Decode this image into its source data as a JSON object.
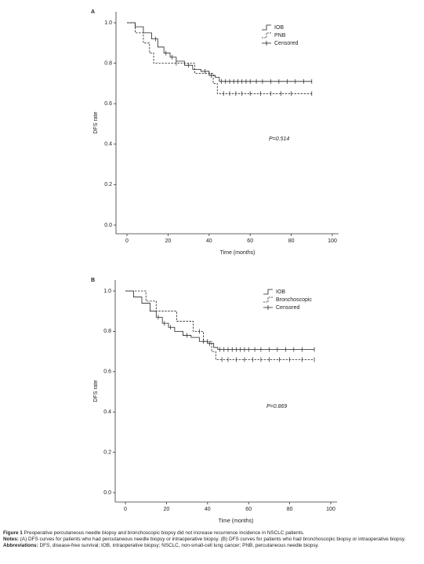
{
  "chart_data": [
    {
      "type": "step",
      "panel": "A",
      "xlabel": "Time (months)",
      "ylabel": "DFS rate",
      "annotation": "P=0.514",
      "xlim": [
        0,
        100
      ],
      "xticks": [
        0,
        20,
        40,
        60,
        80,
        100
      ],
      "ylim": [
        0,
        1
      ],
      "yticks": [
        {
          "value": 0,
          "label": "0.0"
        },
        0.2,
        0.4,
        0.6,
        0.8,
        {
          "value": 1,
          "label": "1.0"
        }
      ],
      "censored_label": "Censored",
      "series": [
        {
          "name": "IOB",
          "dash": false,
          "x": [
            0,
            4,
            8,
            12,
            15,
            18,
            21,
            24,
            28,
            32,
            36,
            40,
            43,
            45,
            90
          ],
          "values": [
            1.0,
            0.98,
            0.95,
            0.92,
            0.88,
            0.85,
            0.83,
            0.81,
            0.79,
            0.77,
            0.76,
            0.74,
            0.73,
            0.71,
            0.71
          ],
          "censored_x": [
            14,
            19,
            22,
            30,
            38,
            41,
            46,
            48,
            50,
            52,
            54,
            56,
            58,
            60,
            63,
            66,
            70,
            74,
            78,
            82,
            86,
            90
          ]
        },
        {
          "name": "PNB",
          "dash": true,
          "x": [
            0,
            4,
            8,
            11,
            13,
            33,
            42,
            44,
            90
          ],
          "values": [
            1.0,
            0.95,
            0.9,
            0.85,
            0.8,
            0.75,
            0.7,
            0.65,
            0.65
          ],
          "censored_x": [
            24,
            40,
            47,
            50,
            53,
            56,
            60,
            65,
            70,
            75,
            80,
            90
          ]
        }
      ]
    },
    {
      "type": "step",
      "panel": "B",
      "xlabel": "Time (months)",
      "ylabel": "DFS rate",
      "annotation": "P=0.869",
      "xlim": [
        0,
        100
      ],
      "xticks": [
        0,
        20,
        40,
        60,
        80,
        100
      ],
      "ylim": [
        0,
        1
      ],
      "yticks": [
        {
          "value": 0,
          "label": "0.0"
        },
        0.2,
        0.4,
        0.6,
        0.8,
        {
          "value": 1,
          "label": "1.0"
        }
      ],
      "censored_label": "Censored",
      "series": [
        {
          "name": "IOB",
          "dash": false,
          "x": [
            0,
            4,
            8,
            12,
            15,
            18,
            21,
            24,
            28,
            32,
            36,
            40,
            43,
            45,
            92
          ],
          "values": [
            1.0,
            0.97,
            0.94,
            0.9,
            0.87,
            0.84,
            0.82,
            0.8,
            0.78,
            0.77,
            0.75,
            0.74,
            0.72,
            0.71,
            0.71
          ],
          "censored_x": [
            16,
            19,
            22,
            30,
            38,
            41,
            46,
            48,
            50,
            52,
            54,
            56,
            58,
            60,
            63,
            66,
            70,
            74,
            78,
            82,
            86,
            92
          ]
        },
        {
          "name": "Bronchoscopic",
          "dash": true,
          "x": [
            0,
            10,
            15,
            25,
            33,
            38,
            42,
            44,
            92
          ],
          "values": [
            1.0,
            0.95,
            0.9,
            0.85,
            0.8,
            0.75,
            0.7,
            0.66,
            0.66
          ],
          "censored_x": [
            36,
            40,
            47,
            50,
            54,
            58,
            62,
            66,
            70,
            75,
            80,
            86,
            92
          ]
        }
      ]
    }
  ],
  "caption": {
    "figure_label": "Figure 1",
    "figure_text": "Preoperative percutaneous needle biopsy and bronchoscopic biopsy did not increase recurrence incidence in NSCLC patients.",
    "notes_label": "Notes:",
    "notes_text": "(A) DFS curves for patients who had percutaneous needle biopsy or intraoperative biopsy. (B) DFS curves for patients who had bronchoscopic biopsy or intraoperative biopsy.",
    "abbr_label": "Abbreviations:",
    "abbr_text": "DFS, disease-free survival; IOB, intraoperative biopsy; NSCLC, non-small-cell lung cancer; PNB, percutaneous needle biopsy."
  }
}
